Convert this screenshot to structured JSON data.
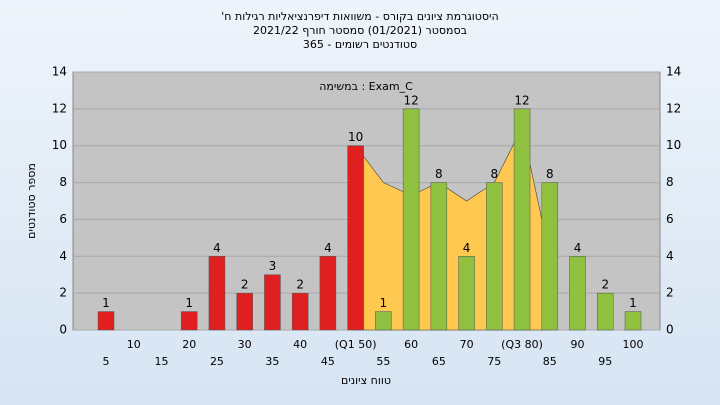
{
  "chart_data": {
    "type": "bar",
    "title": "היסטוגרמת ציונים בקורס - משוואות דיפרנציאליות רגילות ח'",
    "subtitle": "בסמסטר (01/2021) סמסטר חורף 2021/22",
    "subtitle2": "סטודנטים רשומים - 365",
    "annotation": "Exam_C : במשימה",
    "xlabel": "טווח ציונים",
    "ylabel": "מספר סטודנטים",
    "categories": [
      "5",
      "10",
      "15",
      "20",
      "25",
      "30",
      "35",
      "40",
      "45",
      "(Q1 50)",
      "55",
      "60",
      "65",
      "70",
      "75",
      "(Q3 80)",
      "85",
      "90",
      "95",
      "100"
    ],
    "values": [
      1,
      0,
      0,
      1,
      4,
      2,
      3,
      2,
      4,
      10,
      1,
      12,
      8,
      4,
      8,
      12,
      8,
      4,
      2,
      1
    ],
    "colors": [
      "#e02020",
      "#e02020",
      "#e02020",
      "#e02020",
      "#e02020",
      "#e02020",
      "#e02020",
      "#e02020",
      "#e02020",
      "#e02020",
      "#8fc040",
      "#8fc040",
      "#8fc040",
      "#8fc040",
      "#8fc040",
      "#8fc040",
      "#8fc040",
      "#8fc040",
      "#8fc040",
      "#8fc040"
    ],
    "area": {
      "color": "#ffc850",
      "values": [
        null,
        null,
        null,
        null,
        null,
        null,
        null,
        null,
        null,
        10,
        8,
        7.3,
        8,
        7,
        8,
        11,
        4,
        null,
        null,
        null
      ]
    },
    "ylim": [
      0,
      14
    ],
    "yticks": [
      0,
      2,
      4,
      6,
      8,
      10,
      12,
      14
    ],
    "grid": true
  }
}
